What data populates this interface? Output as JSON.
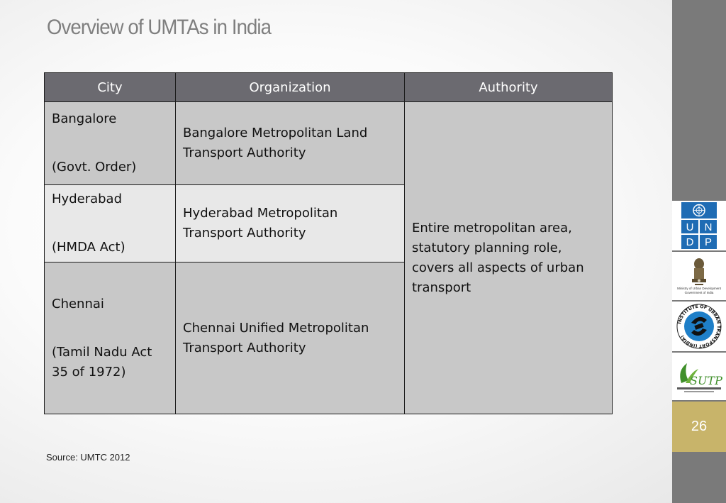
{
  "slide": {
    "title": "Overview of UMTAs in India",
    "page_number": "26",
    "source": "Source: UMTC 2012"
  },
  "table": {
    "headers": [
      "City",
      "Organization",
      "Authority"
    ],
    "rows": [
      {
        "city": "Bangalore",
        "act": "(Govt. Order)",
        "organization": "Bangalore  Metropolitan Land Transport Authority"
      },
      {
        "city": "Hyderabad",
        "act": "(HMDA Act)",
        "organization": "Hyderabad Metropolitan Transport Authority"
      },
      {
        "city": "Chennai",
        "act": "(Tamil Nadu Act 35 of 1972)",
        "organization": "Chennai Unified Metropolitan Transport Authority"
      }
    ],
    "authority": "Entire metropolitan area, statutory planning role, covers all aspects of urban transport"
  },
  "logos": {
    "undp": [
      "U",
      "N",
      "D",
      "P"
    ],
    "ministry_line1": "Ministry of Urban Development",
    "ministry_line2": "Government of India",
    "iut_ring": "INSTITUTE OF URBAN TRANSPORT (INDIA)",
    "sutp": "SUTP"
  },
  "colors": {
    "header_bg": "#6b6a70",
    "cell_dark": "#c8c8c8",
    "cell_light": "#e8e8e8",
    "sidebar": "#7a7a7a",
    "page_box": "#c8b46a",
    "undp_blue": "#1f6cb4"
  }
}
